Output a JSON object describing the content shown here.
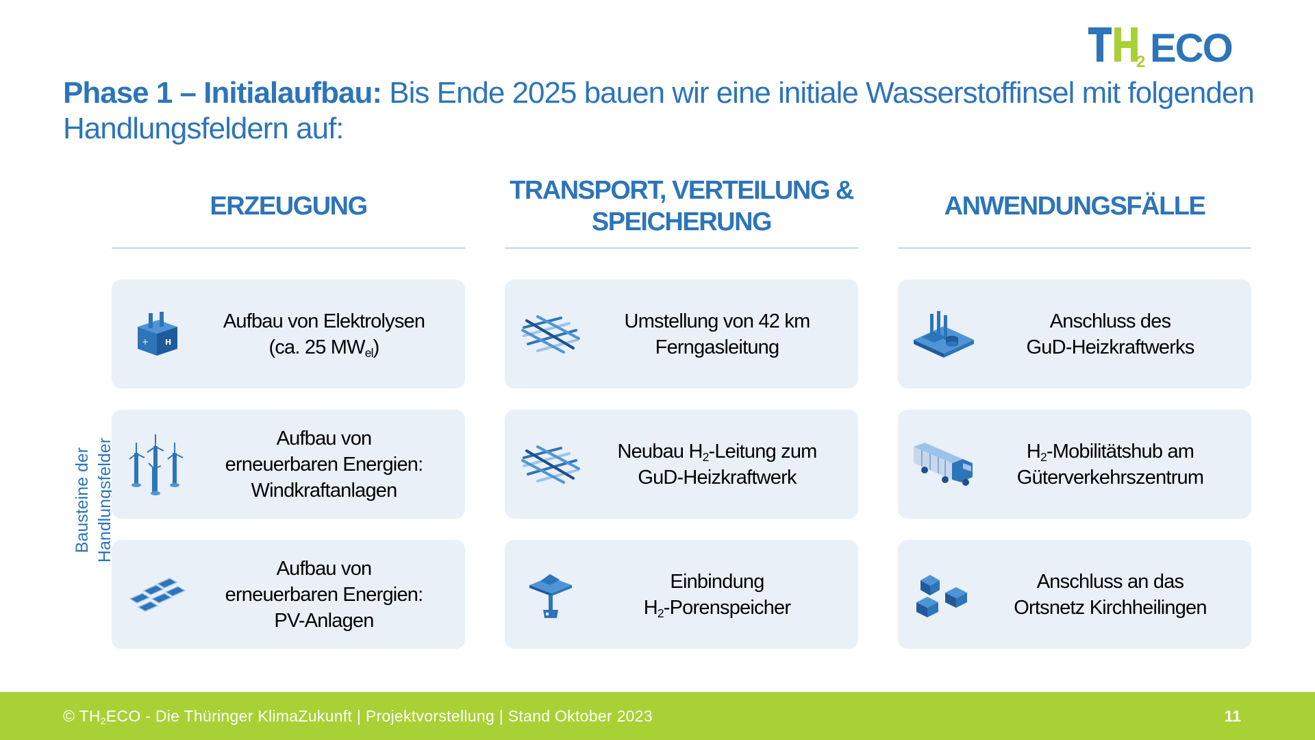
{
  "logo": {
    "text_a": "T",
    "text_b": "H",
    "sub": "2",
    "text_c": "ECO",
    "blue": "#2d74b9",
    "green": "#a8d135"
  },
  "headline": {
    "bold": "Phase 1 – Initialaufbau:",
    "rest": " Bis Ende 2025 bauen wir eine initiale Wasserstoffinsel mit folgenden Handlungsfeldern auf:"
  },
  "side_label": {
    "line1": "Bausteine der",
    "line2": "Handlungsfelder"
  },
  "columns": [
    {
      "heading": "ERZEUGUNG",
      "cards": [
        {
          "icon": "electrolyzer-icon",
          "l1": "Aufbau von Elektrolysen",
          "l2a": "(ca. 25 MW",
          "l2sub": "el",
          "l2b": ")"
        },
        {
          "icon": "wind-turbines-icon",
          "l1": "Aufbau von",
          "l2": "erneuerbaren Energien:",
          "l3": "Windkraftanlagen"
        },
        {
          "icon": "solar-panels-icon",
          "l1": "Aufbau von",
          "l2": "erneuerbaren Energien:",
          "l3": "PV-Anlagen"
        }
      ]
    },
    {
      "heading_l1": "TRANSPORT, VERTEILUNG &",
      "heading_l2": "SPEICHERUNG",
      "cards": [
        {
          "icon": "pipeline-network-icon",
          "l1": "Umstellung von 42 km",
          "l2": "Ferngasleitung"
        },
        {
          "icon": "pipeline-network-icon",
          "l1a": "Neubau H",
          "l1sub": "2",
          "l1b": "-Leitung zum",
          "l2": "GuD-Heizkraftwerk"
        },
        {
          "icon": "pore-storage-icon",
          "l1": "Einbindung",
          "l2a": "H",
          "l2sub": "2",
          "l2b": "-Porenspeicher"
        }
      ]
    },
    {
      "heading": "ANWENDUNGSFÄLLE",
      "cards": [
        {
          "icon": "power-plant-icon",
          "l1": "Anschluss des",
          "l2": "GuD-Heizkraftwerks"
        },
        {
          "icon": "truck-icon",
          "l1a": "H",
          "l1sub": "2",
          "l1b": "-Mobilitätshub am",
          "l2": "Güterverkehrszentrum"
        },
        {
          "icon": "houses-icon",
          "l1": "Anschluss an das",
          "l2": "Ortsnetz Kirchheilingen"
        }
      ]
    }
  ],
  "footer": {
    "a": "© TH",
    "sub": "2",
    "b": "ECO - Die Thüringer KlimaZukunft | Projektvorstellung | Stand Oktober 2023",
    "page": "11"
  }
}
